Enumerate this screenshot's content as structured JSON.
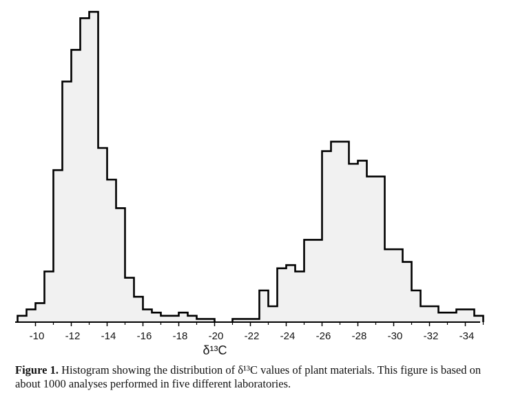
{
  "chart_data": {
    "type": "bar",
    "subtype": "histogram",
    "xlabel": "δ¹³C",
    "xlim": [
      -9,
      -35
    ],
    "bin_width": 0.5,
    "grid": false,
    "legend": "none",
    "tick_values": [
      -10,
      -12,
      -14,
      -16,
      -18,
      -20,
      -22,
      -24,
      -26,
      -28,
      -30,
      -32,
      -34
    ],
    "tick_labels": [
      "-10",
      "-12",
      "-14",
      "-16",
      "-18",
      "-20",
      "-22",
      "-24",
      "-26",
      "-28",
      "-30",
      "-32",
      "-34"
    ],
    "series": [
      {
        "bin_starts": [
          -9.0,
          -9.5,
          -10.0,
          -10.5,
          -11.0,
          -11.5,
          -12.0,
          -12.5,
          -13.0,
          -13.5,
          -14.0,
          -14.5,
          -15.0,
          -15.5,
          -16.0,
          -16.5,
          -17.0,
          -17.5,
          -18.0,
          -18.5,
          -19.0,
          -19.5
        ],
        "values": [
          2,
          4,
          6,
          16,
          48,
          76,
          86,
          96,
          98,
          55,
          45,
          36,
          14,
          8,
          4,
          3,
          2,
          2,
          3,
          2,
          1,
          1
        ]
      },
      {
        "bin_starts": [
          -21.0,
          -21.5,
          -22.0,
          -22.5,
          -23.0,
          -23.5,
          -24.0,
          -24.5,
          -25.0,
          -25.5,
          -26.0,
          -26.5,
          -27.0,
          -27.5,
          -28.0,
          -28.5,
          -29.0,
          -29.5,
          -30.0,
          -30.5,
          -31.0,
          -31.5,
          -32.0,
          -32.5,
          -33.0,
          -33.5,
          -34.0,
          -34.5
        ],
        "values": [
          1,
          1,
          1,
          10,
          5,
          17,
          18,
          16,
          26,
          26,
          54,
          57,
          57,
          50,
          51,
          46,
          46,
          23,
          23,
          19,
          10,
          5,
          5,
          3,
          3,
          4,
          4,
          2
        ]
      }
    ]
  },
  "caption": {
    "label": "Figure 1.",
    "text": "Histogram showing the distribution of δ¹³C values of plant materials. This figure is based on about 1000 analyses performed in five different laboratories."
  }
}
